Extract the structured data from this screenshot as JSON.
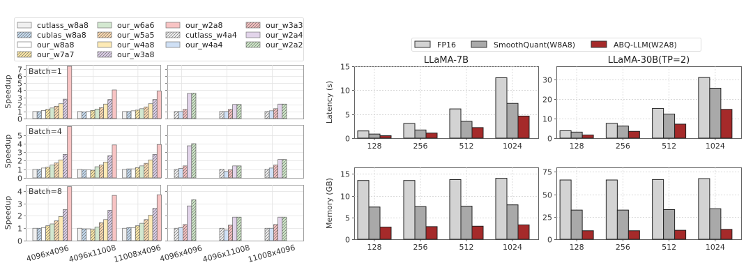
{
  "chart_data": [
    {
      "id": "speedup",
      "type": "bar",
      "ylabel": "Speedup",
      "categories": [
        "4096x4096",
        "4096x11008",
        "11008x4096"
      ],
      "legend": [
        {
          "name": "cutlass_w8a8",
          "color": "#f0f0f0",
          "hatch": false
        },
        {
          "name": "cublas_w8a8",
          "color": "#c6dbef",
          "hatch": true
        },
        {
          "name": "our_w8a8",
          "color": "#ffffff",
          "hatch": false
        },
        {
          "name": "our_w7a7",
          "color": "#fde9a8",
          "hatch": true
        },
        {
          "name": "our_w6a6",
          "color": "#d3e8d0",
          "hatch": false
        },
        {
          "name": "our_w5a5",
          "color": "#fbd9b0",
          "hatch": true
        },
        {
          "name": "our_w4a8",
          "color": "#fdeab5",
          "hatch": false
        },
        {
          "name": "our_w3a8",
          "color": "#ddd0e8",
          "hatch": true
        },
        {
          "name": "our_w2a8",
          "color": "#f8c4c4",
          "hatch": false
        },
        {
          "name": "cutlass_w4a4",
          "color": "#f0f0f0",
          "hatch": true
        },
        {
          "name": "our_w4a4",
          "color": "#cfe0f5",
          "hatch": false
        },
        {
          "name": "our_w3a3",
          "color": "#f5c0c0",
          "hatch": true
        },
        {
          "name": "our_w2a4",
          "color": "#e2d4ea",
          "hatch": false
        },
        {
          "name": "our_w2a2",
          "color": "#cfe8c9",
          "hatch": true
        }
      ],
      "left_series": [
        "cutlass_w8a8",
        "cublas_w8a8",
        "our_w8a8",
        "our_w7a7",
        "our_w6a6",
        "our_w5a5",
        "our_w4a8",
        "our_w3a8",
        "our_w2a8"
      ],
      "right_series": [
        "cutlass_w4a4",
        "our_w4a4",
        "our_w3a3",
        "our_w2a4",
        "our_w2a2"
      ],
      "rows": [
        {
          "label": "Batch=1",
          "ylim": [
            0,
            7.6
          ],
          "yticks": [
            0,
            1,
            2,
            3,
            4,
            5,
            6,
            7
          ],
          "left": [
            [
              1.0,
              1.0,
              1.15,
              1.3,
              1.5,
              1.75,
              2.1,
              2.75,
              7.4
            ],
            [
              1.0,
              0.95,
              1.0,
              1.15,
              1.35,
              1.55,
              2.05,
              2.7,
              4.05
            ],
            [
              1.0,
              1.0,
              1.1,
              1.2,
              1.4,
              1.65,
              2.1,
              2.7,
              3.9
            ]
          ],
          "right": [
            [
              1.0,
              1.0,
              1.3,
              3.55,
              3.6
            ],
            [
              1.0,
              1.0,
              1.3,
              2.0,
              2.0
            ],
            [
              1.0,
              1.1,
              1.4,
              2.05,
              2.05
            ]
          ]
        },
        {
          "label": "Batch=4",
          "ylim": [
            0,
            6.2
          ],
          "yticks": [
            0,
            1,
            2,
            3,
            4,
            5
          ],
          "left": [
            [
              1.0,
              1.0,
              1.15,
              1.25,
              1.5,
              1.75,
              2.1,
              2.75,
              6.0
            ],
            [
              1.0,
              0.95,
              0.95,
              0.9,
              1.3,
              1.5,
              1.85,
              2.6,
              3.85
            ],
            [
              1.0,
              1.05,
              1.05,
              1.2,
              1.4,
              1.7,
              2.1,
              2.75,
              3.9
            ]
          ],
          "right": [
            [
              1.0,
              1.1,
              1.4,
              3.75,
              4.0
            ],
            [
              1.0,
              0.75,
              0.95,
              1.4,
              1.4
            ],
            [
              1.0,
              1.15,
              1.5,
              2.15,
              2.15
            ]
          ]
        },
        {
          "label": "Batch=8",
          "ylim": [
            0,
            4.5
          ],
          "yticks": [
            0,
            1,
            2,
            3,
            4
          ],
          "left": [
            [
              1.0,
              1.0,
              1.05,
              1.2,
              1.35,
              1.6,
              1.95,
              2.5,
              4.35
            ],
            [
              1.0,
              0.95,
              0.95,
              0.9,
              1.1,
              1.45,
              1.7,
              2.45,
              3.65
            ],
            [
              1.0,
              1.05,
              1.05,
              1.2,
              1.4,
              1.7,
              2.05,
              2.6,
              3.7
            ]
          ],
          "right": [
            [
              1.0,
              1.05,
              1.3,
              2.8,
              3.3
            ],
            [
              1.0,
              0.85,
              1.25,
              1.9,
              1.9
            ],
            [
              1.0,
              1.0,
              1.3,
              1.9,
              1.9
            ]
          ]
        }
      ]
    },
    {
      "id": "e2e",
      "type": "bar",
      "legend": [
        {
          "name": "FP16",
          "color": "#d3d3d3"
        },
        {
          "name": "SmoothQuant(W8A8)",
          "color": "#a9a9a9"
        },
        {
          "name": "ABQ-LLM(W2A8)",
          "color": "#a52a2a"
        }
      ],
      "categories": [
        "128",
        "256",
        "512",
        "1024"
      ],
      "grid": true,
      "panels": [
        {
          "title": "LLaMA-7B",
          "ylabel": "Latency (s)",
          "ylim": [
            0,
            15
          ],
          "yticks": [
            0,
            5,
            10,
            15
          ],
          "series": [
            [
              1.5,
              3.05,
              6.1,
              12.6
            ],
            [
              0.85,
              1.7,
              3.5,
              7.25
            ],
            [
              0.5,
              1.05,
              2.2,
              4.6
            ]
          ]
        },
        {
          "title": "LLaMA-30B(TP=2)",
          "ylabel": "",
          "ylim": [
            0,
            37
          ],
          "yticks": [
            0,
            10,
            20,
            30
          ],
          "series": [
            [
              3.8,
              7.6,
              15.3,
              31.2
            ],
            [
              3.1,
              6.2,
              12.4,
              25.7
            ],
            [
              1.6,
              3.5,
              7.2,
              14.8
            ]
          ]
        },
        {
          "title": "",
          "ylabel": "Memory (GB)",
          "ylim": [
            0,
            16.5
          ],
          "yticks": [
            0,
            5,
            10,
            15
          ],
          "series": [
            [
              13.5,
              13.5,
              13.7,
              14.0
            ],
            [
              7.4,
              7.5,
              7.6,
              7.9
            ],
            [
              2.8,
              2.9,
              3.0,
              3.3
            ]
          ]
        },
        {
          "title": "",
          "ylabel": "",
          "ylim": [
            0,
            80
          ],
          "yticks": [
            0,
            25,
            50,
            75
          ],
          "series": [
            [
              66,
              66,
              66.5,
              67.5
            ],
            [
              32.5,
              32.5,
              33,
              34
            ],
            [
              9.5,
              9.5,
              10,
              11
            ]
          ]
        }
      ]
    }
  ]
}
